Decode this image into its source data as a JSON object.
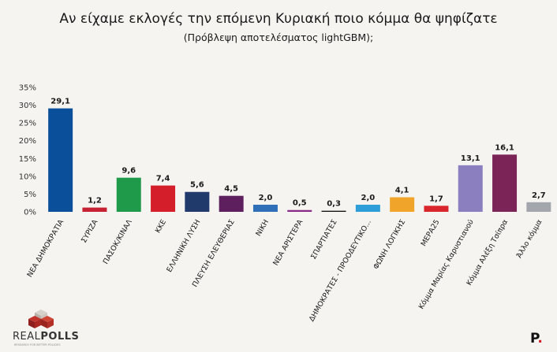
{
  "title": "Αν είχαμε εκλογές την επόμενη Κυριακή ποιο κόμμα θα ψηφίζατε",
  "subtitle": "(Πρόβλεψη αποτελέσματος lightGBM);",
  "logo": {
    "brand_part1": "REAL",
    "brand_part2": "POLLS",
    "tagline": "RESEARCH FOR BETTER POLICIES",
    "icon": "stacked-cubes-logo"
  },
  "publisher_logo": {
    "letter": "P",
    "dot": "."
  },
  "chart_data": {
    "type": "bar",
    "title": "Αν είχαμε εκλογές την επόμενη Κυριακή ποιο κόμμα θα ψηφίζατε",
    "subtitle": "(Πρόβλεψη αποτελέσματος lightGBM);",
    "xlabel": "",
    "ylabel": "",
    "ylim": [
      0,
      35
    ],
    "yticks": [
      "0%",
      "5%",
      "10%",
      "15%",
      "20%",
      "25%",
      "30%",
      "35%"
    ],
    "grid": false,
    "categories": [
      "ΝΕΑ ΔΗΜΟΚΡΑΤΙΑ",
      "ΣΥΡΙΖΑ",
      "ΠΑΣΟΚ/ΚΙΝΑΛ",
      "ΚΚΕ",
      "ΕΛΛΗΝΙΚΗ ΛΥΣΗ",
      "ΠΛΕΥΣΗ ΕΛΕΥΘΕΡΙΑΣ",
      "ΝΙΚΗ",
      "ΝΕΑ ΑΡΙΣΤΕΡΑ",
      "ΣΠΑΡΤΙΑΤΕΣ",
      "ΔΗΜΟΚΡΑΤΕΣ - ΠΡΟΟΔΕΥΤΙΚΟ...",
      "ΦΩΝΗ ΛΟΓΙΚΗΣ",
      "ΜΕΡΑ25",
      "Κόμμα Μαρίας Καρυστιανού",
      "Κόμμα Αλέξη Τσίπρα",
      "Άλλο κόμμα"
    ],
    "values": [
      29.1,
      1.2,
      9.6,
      7.4,
      5.6,
      4.5,
      2.0,
      0.5,
      0.3,
      2.0,
      4.1,
      1.7,
      13.1,
      16.1,
      2.7
    ],
    "value_labels": [
      "29,1",
      "1,2",
      "9,6",
      "7,4",
      "5,6",
      "4,5",
      "2,0",
      "0,5",
      "0,3",
      "2,0",
      "4,1",
      "1,7",
      "13,1",
      "16,1",
      "2,7"
    ],
    "colors": [
      "#0a4f99",
      "#c62033",
      "#1f9a4a",
      "#d41f2a",
      "#1f3a6b",
      "#5e1f5e",
      "#2f6fb8",
      "#8a2b87",
      "#111111",
      "#2e9ed8",
      "#f0a52a",
      "#d9262c",
      "#8b7fc0",
      "#7a2457",
      "#a3a7ad"
    ]
  }
}
